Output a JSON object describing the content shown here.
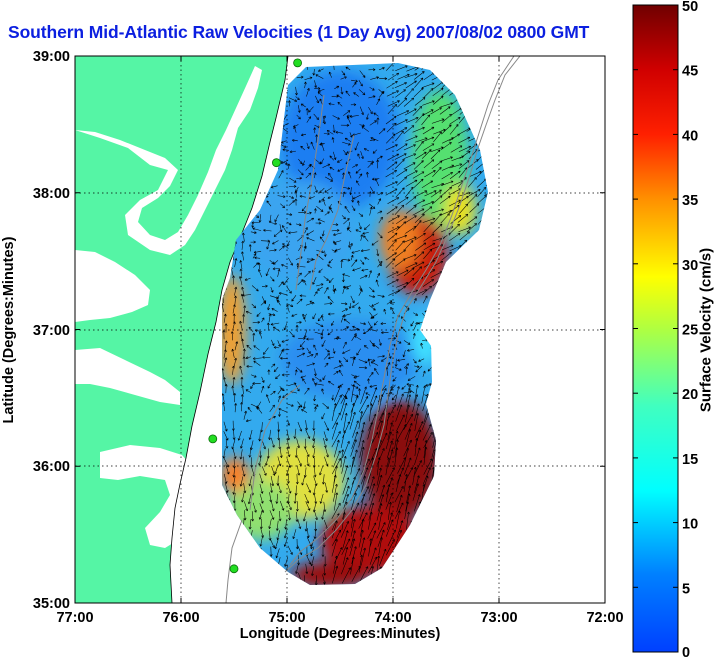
{
  "title": "Southern Mid-Atlantic Raw Velocities (1 Day Avg) 2007/08/02 0800 GMT",
  "x_axis": {
    "label": "Longitude (Degrees:Minutes)",
    "ticks": [
      "77:00",
      "76:00",
      "75:00",
      "74:00",
      "73:00",
      "72:00"
    ]
  },
  "y_axis": {
    "label": "Latitude (Degrees:Minutes)",
    "ticks": [
      "39:00",
      "38:00",
      "37:00",
      "36:00",
      "35:00"
    ]
  },
  "colorbar": {
    "label": "Surface Velocity (cm/s)",
    "min": 0,
    "max": 50,
    "ticks": [
      "50",
      "45",
      "40",
      "35",
      "30",
      "25",
      "20",
      "15",
      "10",
      "5",
      "0"
    ]
  },
  "colors": {
    "land": "#55f5a5",
    "title": "#0b1fe0",
    "station_marker": "#22dd22"
  },
  "map_data": {
    "lon_range": [
      -77,
      -72
    ],
    "lat_range": [
      35,
      39
    ],
    "grid": "dotted",
    "stations": [
      {
        "lon": -74.9,
        "lat": 38.95
      },
      {
        "lon": -75.1,
        "lat": 38.22
      },
      {
        "lon": -75.7,
        "lat": 36.2
      },
      {
        "lon": -75.5,
        "lat": 35.25
      }
    ]
  }
}
